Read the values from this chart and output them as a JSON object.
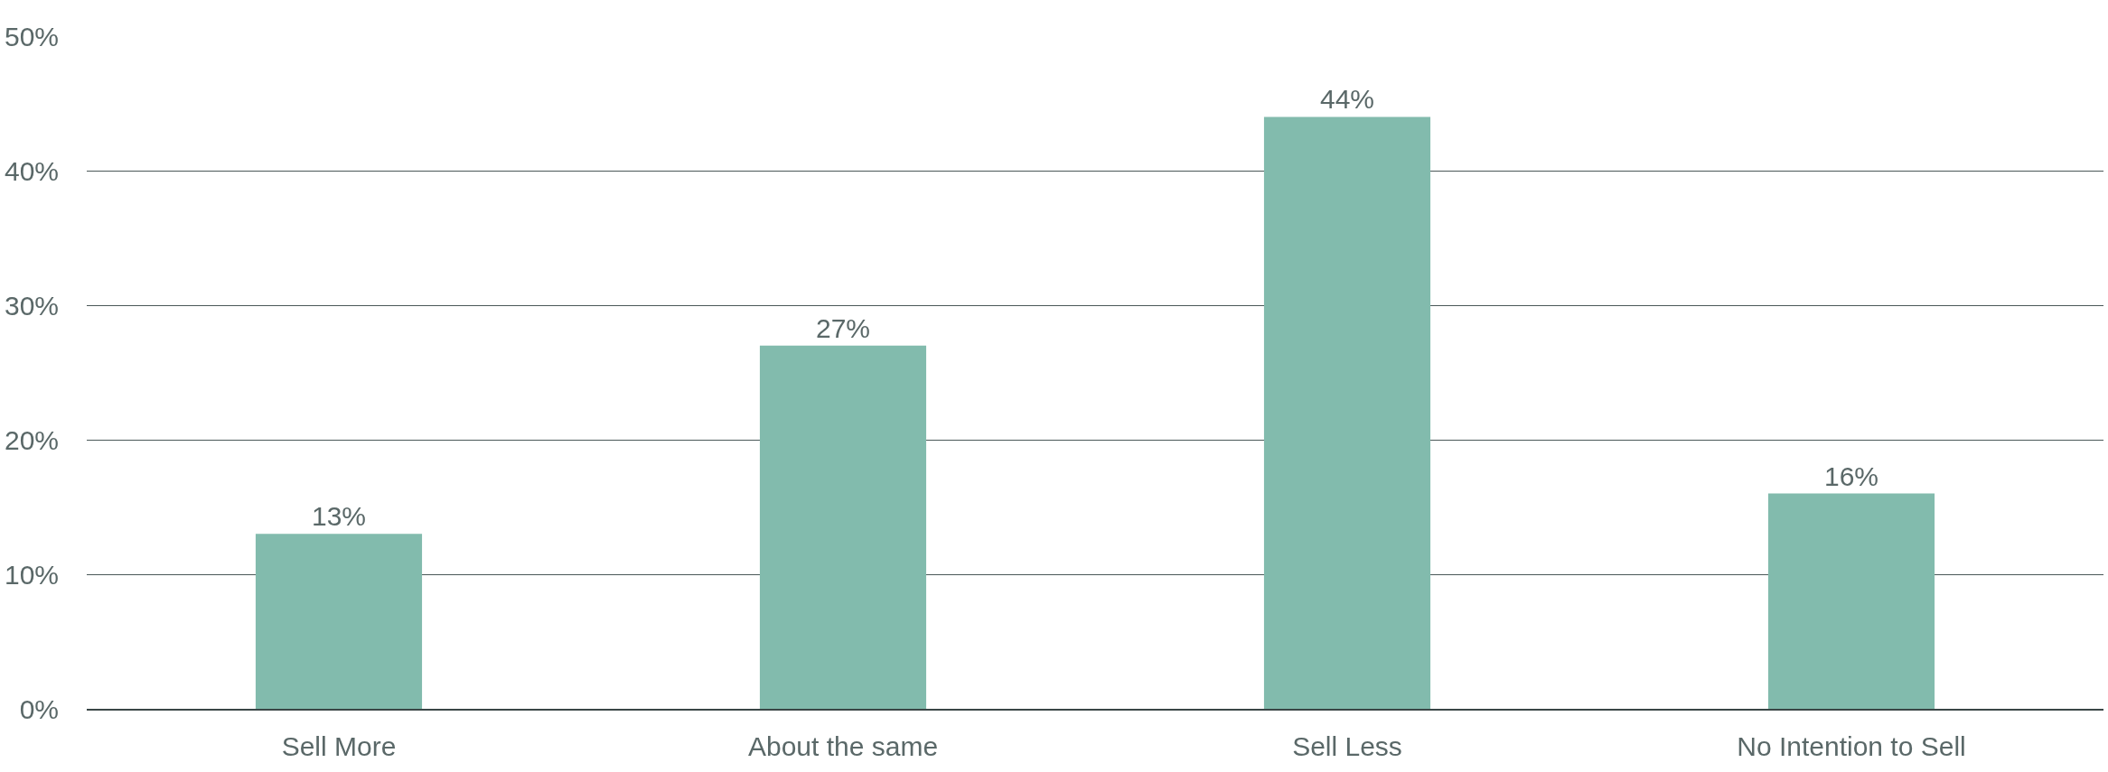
{
  "chart_data": {
    "type": "bar",
    "categories": [
      "Sell More",
      "About the same",
      "Sell Less",
      "No Intention to Sell"
    ],
    "values": [
      13,
      27,
      44,
      16
    ],
    "value_labels": [
      "13%",
      "27%",
      "44%",
      "16%"
    ],
    "color": "#82bbad",
    "ylim": [
      0,
      50
    ],
    "yticks": [
      {
        "value": 0,
        "label": "0%"
      },
      {
        "value": 10,
        "label": "10%"
      },
      {
        "value": 20,
        "label": "20%"
      },
      {
        "value": 30,
        "label": "30%"
      },
      {
        "value": 40,
        "label": "40%"
      },
      {
        "value": 50,
        "label": "50%"
      }
    ],
    "grid": "y"
  }
}
